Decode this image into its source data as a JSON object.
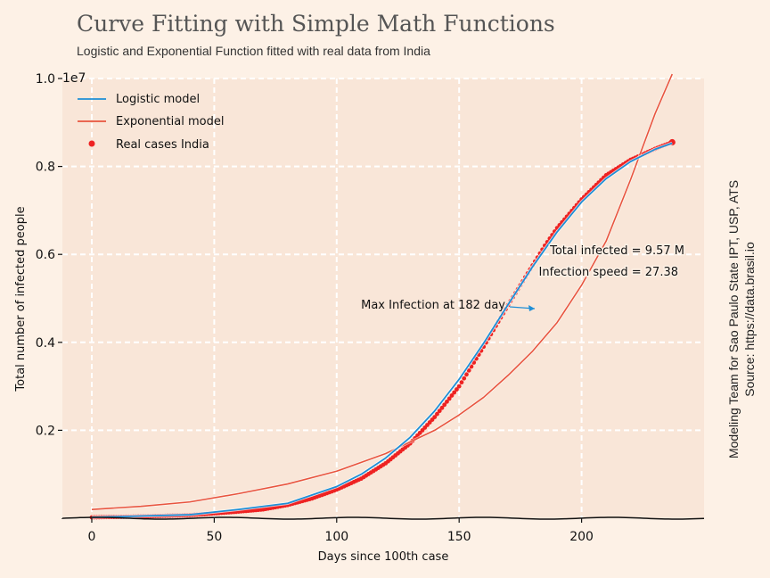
{
  "header": {
    "title": "Curve Fitting with Simple Math Functions",
    "subtitle": "Logistic and Exponential Function fitted with real data from India"
  },
  "side_note": {
    "line1": "Modeling Team for Sao Paulo State IPT, USP, ATS",
    "line2": "Source: https://data.brasil.io"
  },
  "annotations": {
    "total_infected": "Total infected = 9.57 M",
    "infection_speed": "Infection speed = 27.38",
    "max_infection": "Max Infection at 182 day"
  },
  "colors": {
    "plot_bg": "#f9e6d8",
    "page_bg": "#fdf1e6",
    "logistic": "#1f8fd6",
    "exponential": "#e8553f",
    "real": "#ee2222",
    "grid": "#ffffff"
  },
  "chart_data": {
    "type": "line",
    "xlabel": "Days since 100th case",
    "ylabel": "Total number of infected people",
    "y_offset_label": "1e7",
    "xlim": [
      -12,
      250
    ],
    "ylim": [
      0,
      10000000
    ],
    "x_ticks": [
      0,
      50,
      100,
      150,
      200
    ],
    "x_tick_labels": [
      "0",
      "50",
      "100",
      "150",
      "200"
    ],
    "y_ticks": [
      2000000,
      4000000,
      6000000,
      8000000,
      10000000
    ],
    "y_tick_labels": [
      "0.2",
      "0.4",
      "0.6",
      "0.8",
      "1.0"
    ],
    "grid": true,
    "legend_position": "top-left",
    "max_infection_day": 182,
    "series": [
      {
        "name": "Logistic model",
        "x": [
          0,
          20,
          40,
          60,
          80,
          100,
          110,
          120,
          130,
          140,
          150,
          160,
          170,
          180,
          190,
          200,
          210,
          220,
          230,
          237
        ],
        "y": [
          20000,
          50000,
          80000,
          200000,
          340000,
          720000,
          1000000,
          1370000,
          1840000,
          2440000,
          3160000,
          3980000,
          4860000,
          5720000,
          6510000,
          7190000,
          7720000,
          8110000,
          8390000,
          8530000
        ]
      },
      {
        "name": "Exponential model",
        "x": [
          0,
          20,
          40,
          60,
          80,
          100,
          120,
          140,
          150,
          160,
          170,
          180,
          190,
          200,
          210,
          220,
          230,
          237
        ],
        "y": [
          200000,
          270000,
          370000,
          560000,
          780000,
          1070000,
          1470000,
          2000000,
          2350000,
          2750000,
          3250000,
          3800000,
          4450000,
          5300000,
          6300000,
          7700000,
          9200000,
          10100000
        ]
      },
      {
        "name": "Real cases India",
        "x": [
          0,
          20,
          40,
          60,
          70,
          80,
          90,
          100,
          110,
          120,
          130,
          140,
          150,
          160,
          170,
          175,
          180,
          185,
          190,
          200,
          210,
          220,
          230,
          237
        ],
        "y": [
          20000,
          40000,
          70000,
          150000,
          200000,
          300000,
          450000,
          650000,
          900000,
          1250000,
          1700000,
          2300000,
          3000000,
          3900000,
          4850000,
          5300000,
          5750000,
          6200000,
          6600000,
          7250000,
          7800000,
          8150000,
          8400000,
          8550000
        ]
      }
    ]
  }
}
